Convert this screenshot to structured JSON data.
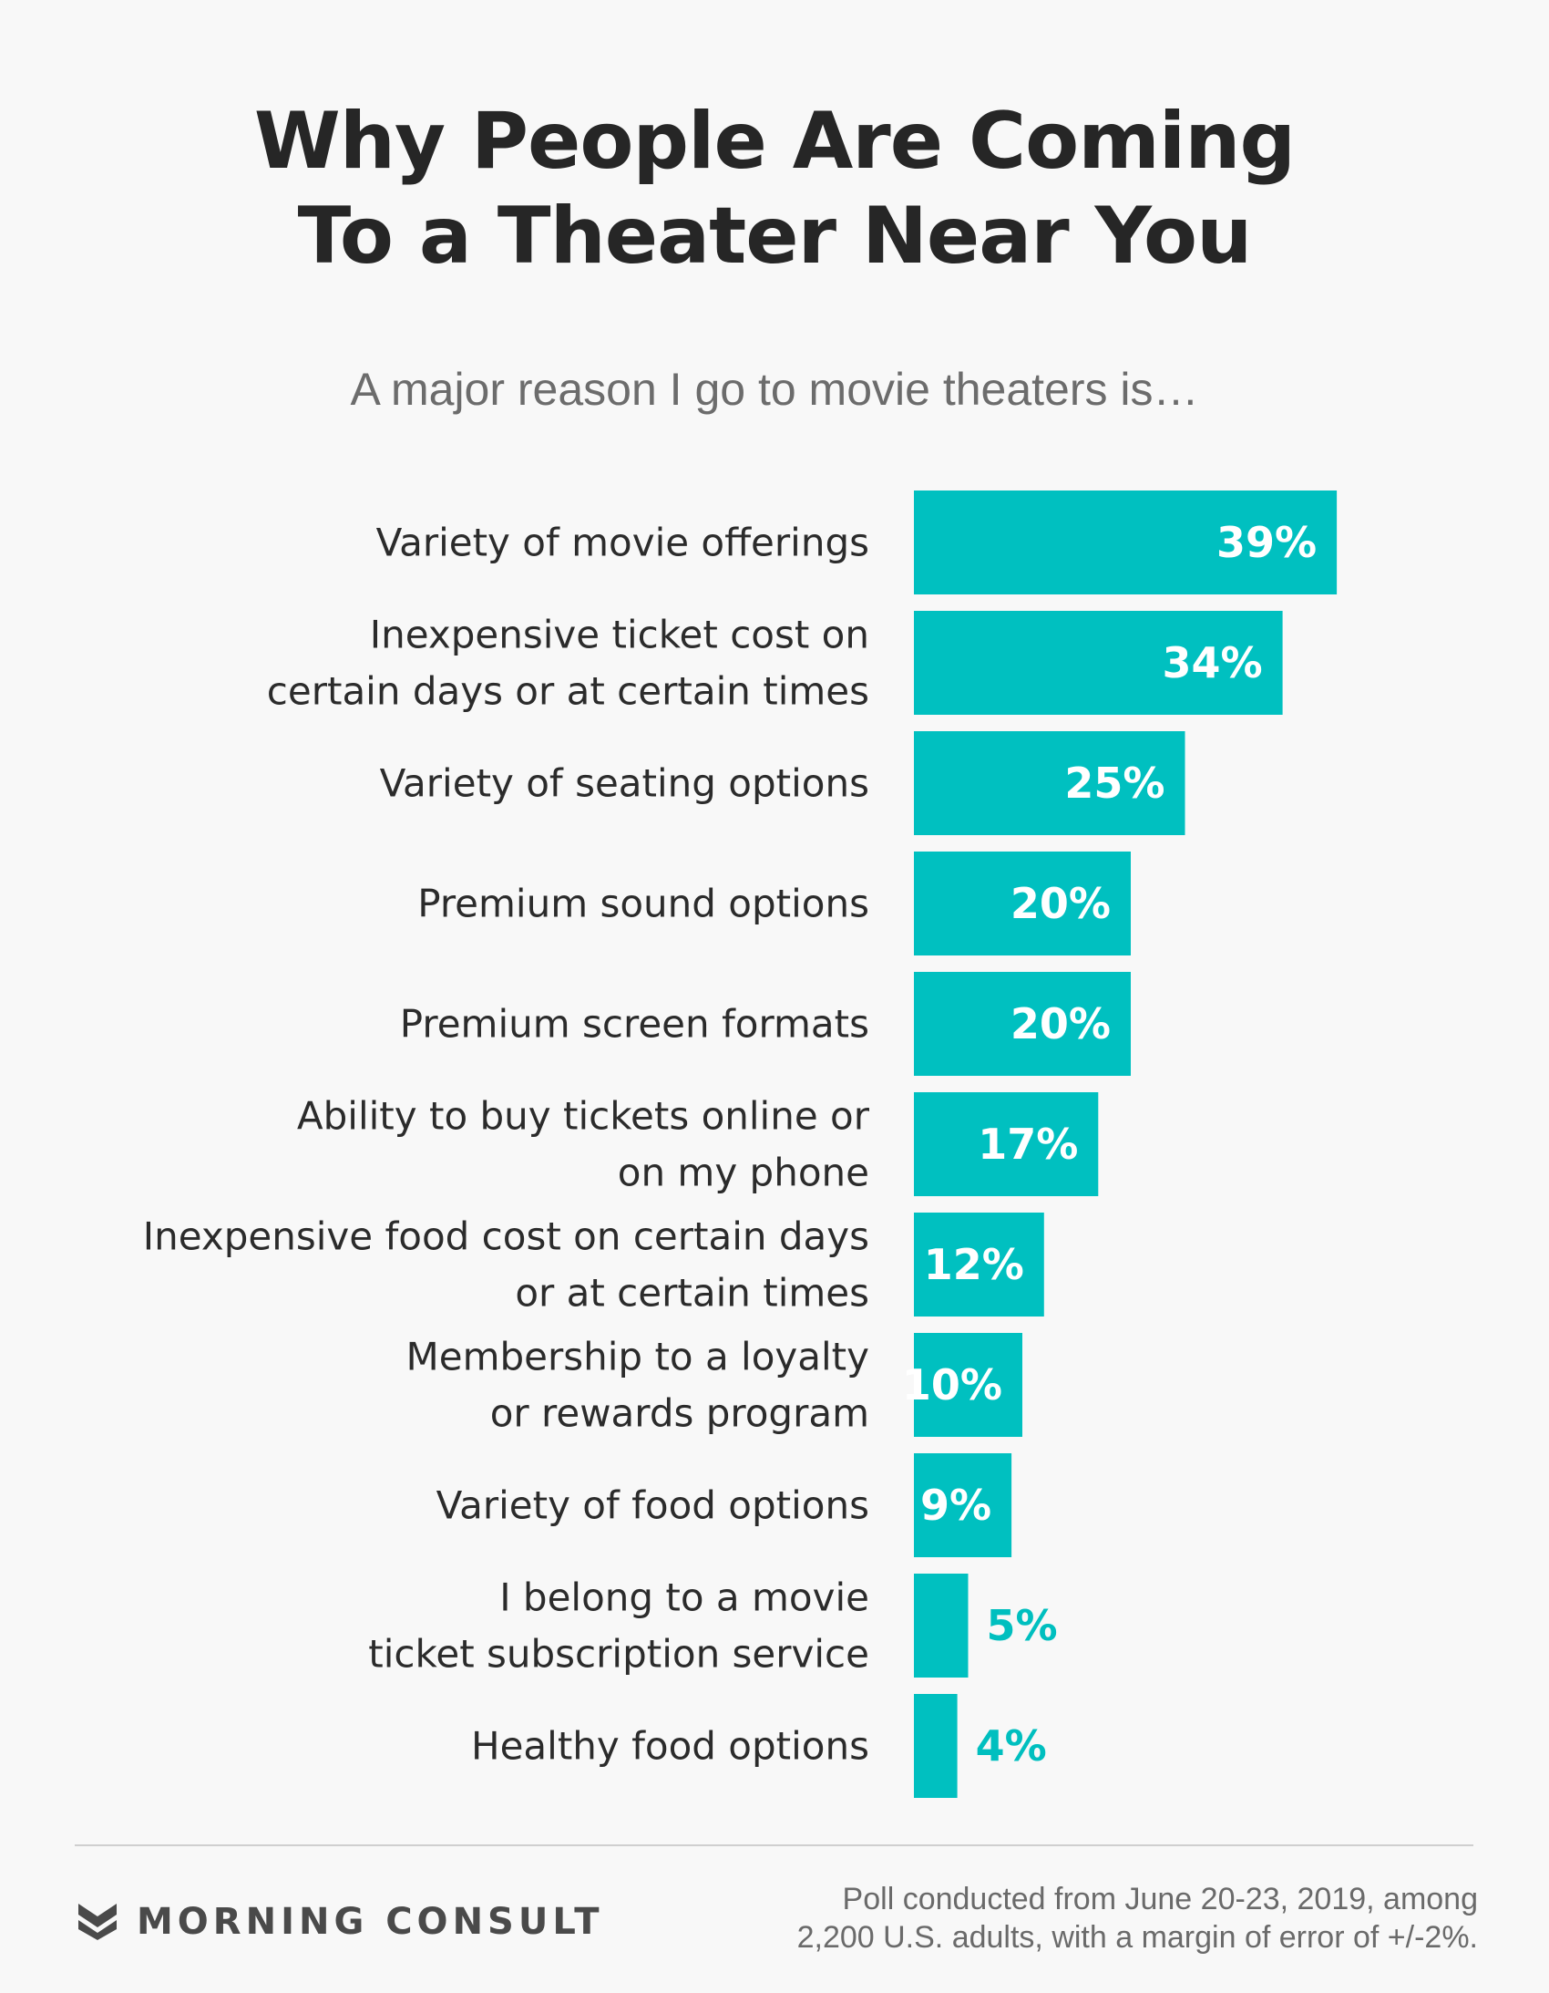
{
  "title_lines": [
    "Why People Are Coming",
    "To a Theater Near You"
  ],
  "subtitle": "A major reason I go to movie theaters is…",
  "colors": {
    "bar": "#00c0c0",
    "label_inside": "#ffffff",
    "label_outside": "#00bfbf",
    "background": "#f8f8f8"
  },
  "chart_data": {
    "type": "bar",
    "orientation": "horizontal",
    "title": "Why People Are Coming To a Theater Near You",
    "subtitle": "A major reason I go to movie theaters is…",
    "xlabel": "",
    "ylabel": "",
    "unit": "%",
    "grid": false,
    "legend": "none",
    "categories": [
      [
        "Variety of movie offerings"
      ],
      [
        "Inexpensive ticket cost on",
        "certain days or at certain times"
      ],
      [
        "Variety of seating options"
      ],
      [
        "Premium sound options"
      ],
      [
        "Premium screen formats"
      ],
      [
        "Ability to buy tickets online or",
        "on my phone"
      ],
      [
        "Inexpensive food cost on certain days",
        "or at certain times"
      ],
      [
        "Membership to a loyalty",
        "or rewards program"
      ],
      [
        "Variety of food options"
      ],
      [
        "I belong to a movie",
        "ticket subscription service"
      ],
      [
        "Healthy food options"
      ]
    ],
    "values": [
      39,
      34,
      25,
      20,
      20,
      17,
      12,
      10,
      9,
      5,
      4
    ],
    "value_labels": [
      "39%",
      "34%",
      "25%",
      "20%",
      "20%",
      "17%",
      "12%",
      "10%",
      "9%",
      "5%",
      "4%"
    ]
  },
  "footer": {
    "logo_text": "MORNING CONSULT",
    "note_lines": [
      "Poll conducted from June 20-23, 2019, among",
      "2,200 U.S. adults, with a margin of error of +/-2%."
    ]
  }
}
